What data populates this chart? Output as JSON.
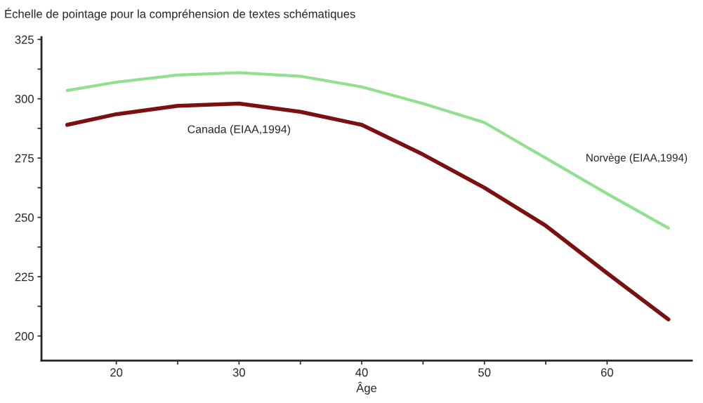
{
  "chart_data": {
    "type": "line",
    "ylabel": "Échelle de pointage pour la compréhension de textes schématiques",
    "xlabel": "Âge",
    "x": [
      16,
      20,
      25,
      30,
      35,
      40,
      45,
      50,
      55,
      60,
      65
    ],
    "series": [
      {
        "name": "Norvège (EIAA,1994)",
        "color": "#90e090",
        "values": [
          303.5,
          307,
          310,
          311,
          309.5,
          305,
          298,
          290,
          275,
          260,
          245.5
        ]
      },
      {
        "name": "Canada (EIAA,1994)",
        "color": "#7a1010",
        "values": [
          289,
          293.5,
          297,
          298,
          294.5,
          289,
          276.5,
          262.5,
          246.5,
          226.5,
          207
        ]
      }
    ],
    "xlim": [
      13.9,
      66.9
    ],
    "xticks": [
      20,
      {
        "value": 25,
        "label": null
      },
      30,
      {
        "value": 35,
        "label": null
      },
      40,
      {
        "value": 45,
        "label": null
      },
      50,
      {
        "value": 55,
        "label": null
      },
      60
    ],
    "ylim": [
      189.6,
      326
    ],
    "yticks": [
      200,
      {
        "value": 212.5,
        "label": null
      },
      225,
      {
        "value": 237.5,
        "label": null
      },
      250,
      {
        "value": 262.5,
        "label": null
      },
      275,
      {
        "value": 287.5,
        "label": null
      },
      300,
      {
        "value": 312.5,
        "label": null
      },
      325
    ],
    "grid": false,
    "legend": false,
    "marker": "none",
    "line_style": "solid"
  }
}
